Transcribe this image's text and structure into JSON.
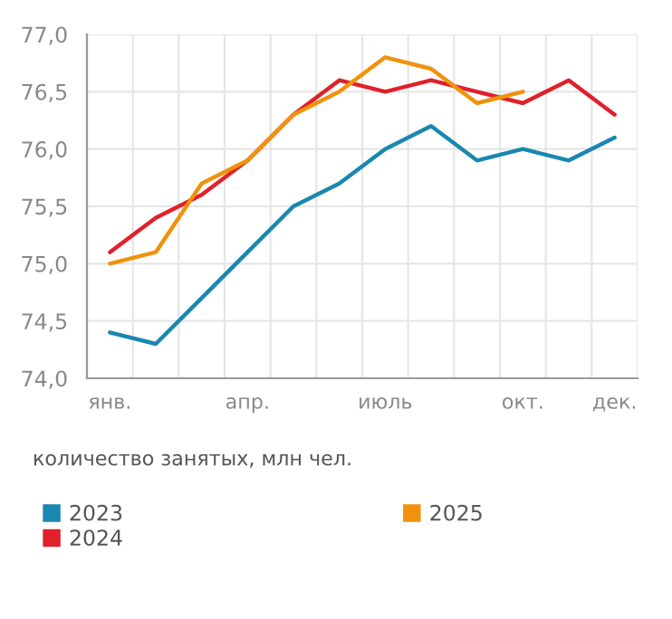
{
  "chart_data": {
    "type": "line",
    "categories": [
      "янв.",
      null,
      null,
      "апр.",
      null,
      null,
      "июль",
      null,
      null,
      "окт.",
      null,
      "дек."
    ],
    "series": [
      {
        "name": "2023",
        "color": "#1a87b0",
        "values": [
          74.4,
          74.3,
          74.7,
          75.1,
          75.5,
          75.7,
          76.0,
          76.2,
          75.9,
          76.0,
          75.9,
          76.1
        ]
      },
      {
        "name": "2024",
        "color": "#e0202a",
        "values": [
          75.1,
          75.4,
          75.6,
          75.9,
          76.3,
          76.6,
          76.5,
          76.6,
          76.5,
          76.4,
          76.6,
          76.3
        ]
      },
      {
        "name": "2025",
        "color": "#f0920c",
        "values": [
          75.0,
          75.1,
          75.7,
          75.9,
          76.3,
          76.5,
          76.8,
          76.7,
          76.4,
          76.5,
          null,
          null
        ]
      }
    ],
    "ylim": [
      74.0,
      77.0
    ],
    "yticks": [
      {
        "value": 74.0,
        "label": "74,0"
      },
      {
        "value": 74.5,
        "label": "74,5"
      },
      {
        "value": 75.0,
        "label": "75,0"
      },
      {
        "value": 75.5,
        "label": "75,5"
      },
      {
        "value": 76.0,
        "label": "76,0"
      },
      {
        "value": 76.5,
        "label": "76,5"
      },
      {
        "value": 77.0,
        "label": "77,0"
      }
    ],
    "annotations": [
      "количество занятых, млн чел."
    ],
    "grid": true,
    "legend": "bottom",
    "marker": "none",
    "line_style": "solid"
  }
}
